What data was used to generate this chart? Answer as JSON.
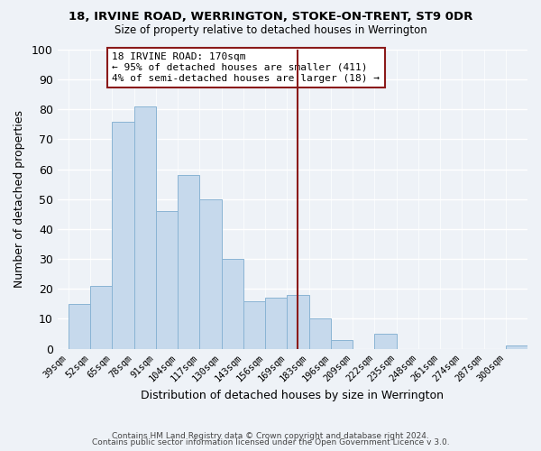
{
  "title1": "18, IRVINE ROAD, WERRINGTON, STOKE-ON-TRENT, ST9 0DR",
  "title2": "Size of property relative to detached houses in Werrington",
  "xlabel": "Distribution of detached houses by size in Werrington",
  "ylabel": "Number of detached properties",
  "footer1": "Contains HM Land Registry data © Crown copyright and database right 2024.",
  "footer2": "Contains public sector information licensed under the Open Government Licence v 3.0.",
  "bin_labels": [
    "39sqm",
    "52sqm",
    "65sqm",
    "78sqm",
    "91sqm",
    "104sqm",
    "117sqm",
    "130sqm",
    "143sqm",
    "156sqm",
    "169sqm",
    "183sqm",
    "196sqm",
    "209sqm",
    "222sqm",
    "235sqm",
    "248sqm",
    "261sqm",
    "274sqm",
    "287sqm",
    "300sqm"
  ],
  "bar_values": [
    15,
    21,
    76,
    81,
    46,
    58,
    50,
    30,
    16,
    17,
    18,
    10,
    3,
    0,
    5,
    0,
    0,
    0,
    0,
    0,
    1
  ],
  "bar_color": "#c6d9ec",
  "bar_edge_color": "#8ab4d4",
  "ylim": [
    0,
    100
  ],
  "yticks": [
    0,
    10,
    20,
    30,
    40,
    50,
    60,
    70,
    80,
    90,
    100
  ],
  "annotation_title": "18 IRVINE ROAD: 170sqm",
  "annotation_line1": "← 95% of detached houses are smaller (411)",
  "annotation_line2": "4% of semi-detached houses are larger (18) →",
  "vline_color": "#8b1a1a",
  "annotation_box_color": "#ffffff",
  "annotation_box_edge": "#8b1a1a",
  "background_color": "#eef2f7",
  "grid_color": "#ffffff",
  "vline_x": 10.5
}
